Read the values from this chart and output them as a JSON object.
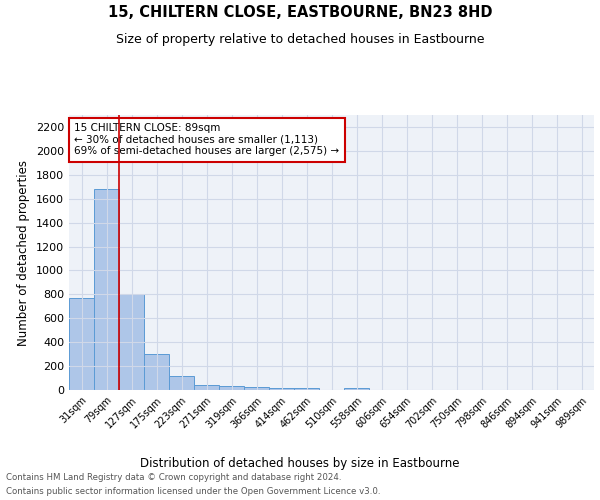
{
  "title": "15, CHILTERN CLOSE, EASTBOURNE, BN23 8HD",
  "subtitle": "Size of property relative to detached houses in Eastbourne",
  "xlabel": "Distribution of detached houses by size in Eastbourne",
  "ylabel": "Number of detached properties",
  "bar_labels": [
    "31sqm",
    "79sqm",
    "127sqm",
    "175sqm",
    "223sqm",
    "271sqm",
    "319sqm",
    "366sqm",
    "414sqm",
    "462sqm",
    "510sqm",
    "558sqm",
    "606sqm",
    "654sqm",
    "702sqm",
    "750sqm",
    "798sqm",
    "846sqm",
    "894sqm",
    "941sqm",
    "989sqm"
  ],
  "bar_values": [
    770,
    1680,
    800,
    300,
    115,
    40,
    30,
    25,
    20,
    20,
    0,
    20,
    0,
    0,
    0,
    0,
    0,
    0,
    0,
    0,
    0
  ],
  "bar_color": "#aec6e8",
  "bar_edge_color": "#5b9bd5",
  "grid_color": "#d0d8e8",
  "background_color": "#eef2f8",
  "red_line_x": 1.5,
  "annotation_text": "15 CHILTERN CLOSE: 89sqm\n← 30% of detached houses are smaller (1,113)\n69% of semi-detached houses are larger (2,575) →",
  "annotation_box_color": "#ffffff",
  "annotation_box_edge": "#cc0000",
  "ylim": [
    0,
    2300
  ],
  "yticks": [
    0,
    200,
    400,
    600,
    800,
    1000,
    1200,
    1400,
    1600,
    1800,
    2000,
    2200
  ],
  "footer_line1": "Contains HM Land Registry data © Crown copyright and database right 2024.",
  "footer_line2": "Contains public sector information licensed under the Open Government Licence v3.0."
}
